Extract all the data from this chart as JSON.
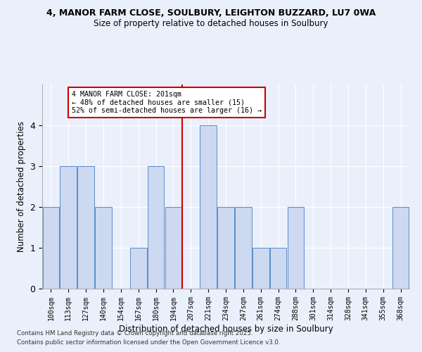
{
  "title1": "4, MANOR FARM CLOSE, SOULBURY, LEIGHTON BUZZARD, LU7 0WA",
  "title2": "Size of property relative to detached houses in Soulbury",
  "xlabel": "Distribution of detached houses by size in Soulbury",
  "ylabel": "Number of detached properties",
  "categories": [
    "100sqm",
    "113sqm",
    "127sqm",
    "140sqm",
    "154sqm",
    "167sqm",
    "180sqm",
    "194sqm",
    "207sqm",
    "221sqm",
    "234sqm",
    "247sqm",
    "261sqm",
    "274sqm",
    "288sqm",
    "301sqm",
    "314sqm",
    "328sqm",
    "341sqm",
    "355sqm",
    "368sqm"
  ],
  "values": [
    2,
    3,
    3,
    2,
    0,
    1,
    3,
    2,
    0,
    4,
    2,
    2,
    1,
    1,
    2,
    0,
    0,
    0,
    0,
    0,
    2
  ],
  "bar_color": "#ccd9f0",
  "bar_edge_color": "#5b8dc8",
  "ref_line_index": 8,
  "annotation_line1": "4 MANOR FARM CLOSE: 201sqm",
  "annotation_line2": "← 48% of detached houses are smaller (15)",
  "annotation_line3": "52% of semi-detached houses are larger (16) →",
  "annotation_box_color": "#ffffff",
  "annotation_box_edge_color": "#cc0000",
  "ref_line_color": "#cc0000",
  "ylim": [
    0,
    5
  ],
  "yticks": [
    0,
    1,
    2,
    3,
    4
  ],
  "footer1": "Contains HM Land Registry data © Crown copyright and database right 2025.",
  "footer2": "Contains public sector information licensed under the Open Government Licence v3.0.",
  "bg_color": "#eaf0fb",
  "plot_bg_color": "#eaf0fb"
}
